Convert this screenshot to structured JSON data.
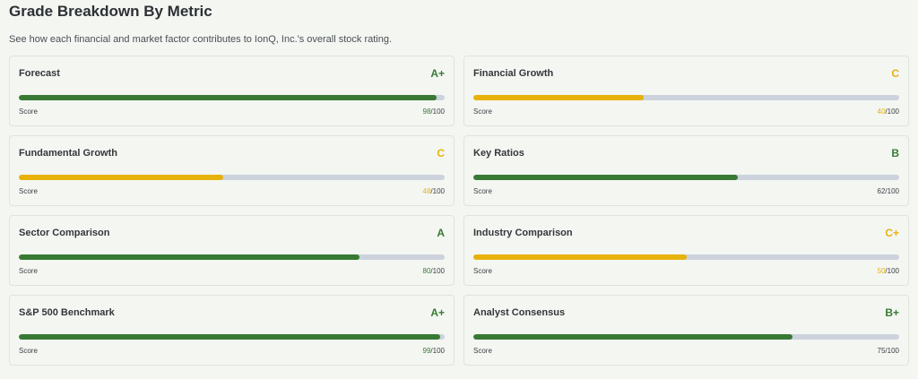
{
  "header": {
    "title": "Grade Breakdown By Metric",
    "subtitle": "See how each financial and market factor contributes to IonQ, Inc.'s overall stock rating."
  },
  "colors": {
    "green": "#387a34",
    "yellow": "#e8b20c",
    "track": "#ccd3dd"
  },
  "metrics": [
    {
      "name": "Forecast",
      "grade": "A+",
      "score": 98,
      "score_label": "Score",
      "score_value": "98",
      "max_label": "/100",
      "color": "#387a34"
    },
    {
      "name": "Financial Growth",
      "grade": "C",
      "score": 40,
      "score_label": "Score",
      "score_value": "40",
      "max_label": "/100",
      "color": "#e8b20c"
    },
    {
      "name": "Fundamental Growth",
      "grade": "C",
      "score": 48,
      "score_label": "Score",
      "score_value": "48",
      "max_label": "/100",
      "color": "#e8b20c"
    },
    {
      "name": "Key Ratios",
      "grade": "B",
      "score": 62,
      "score_label": "Score",
      "score_value": "62",
      "max_label": "/100",
      "color": "#387a34"
    },
    {
      "name": "Sector Comparison",
      "grade": "A",
      "score": 80,
      "score_label": "Score",
      "score_value": "80",
      "max_label": "/100",
      "color": "#387a34"
    },
    {
      "name": "Industry Comparison",
      "grade": "C+",
      "score": 50,
      "score_label": "Score",
      "score_value": "50",
      "max_label": "/100",
      "color": "#e8b20c"
    },
    {
      "name": "S&P 500 Benchmark",
      "grade": "A+",
      "score": 99,
      "score_label": "Score",
      "score_value": "99",
      "max_label": "/100",
      "color": "#387a34"
    },
    {
      "name": "Analyst Consensus",
      "grade": "B+",
      "score": 75,
      "score_label": "Score",
      "score_value": "75",
      "max_label": "/100",
      "color": "#387a34"
    }
  ]
}
